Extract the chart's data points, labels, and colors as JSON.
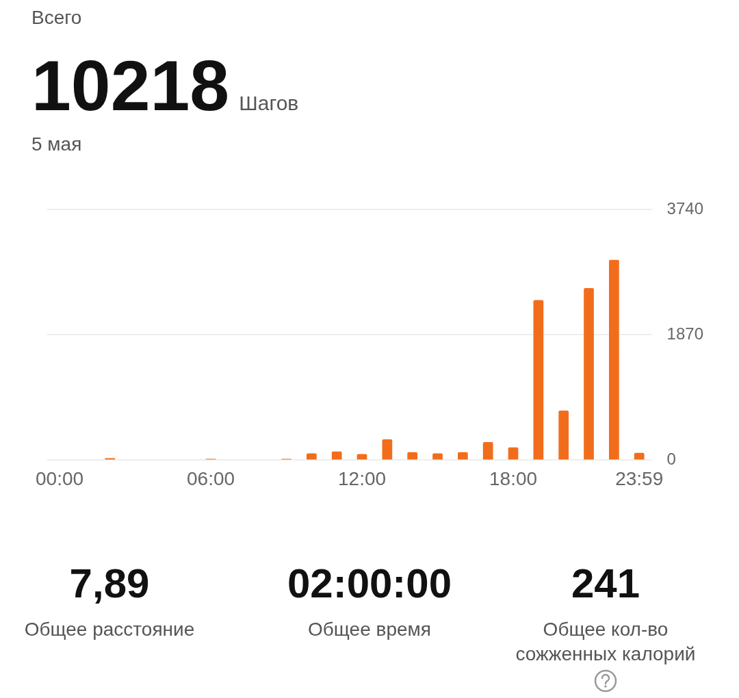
{
  "chart_data": {
    "type": "bar",
    "title": "Всего",
    "annotations": [
      "10218",
      "Шагов",
      "5 мая",
      "7,89",
      "Общее расстояние",
      "02:00:00",
      "Общее время",
      "241",
      "Общее кол-во сожженных калорий"
    ],
    "categories": [
      "00:00",
      null,
      null,
      null,
      null,
      null,
      "06:00",
      null,
      null,
      null,
      null,
      null,
      "12:00",
      null,
      null,
      null,
      null,
      null,
      "18:00",
      null,
      null,
      null,
      null,
      "23:59"
    ],
    "values": [
      0,
      0,
      30,
      0,
      0,
      0,
      20,
      0,
      0,
      20,
      100,
      130,
      90,
      310,
      120,
      100,
      120,
      270,
      190,
      2390,
      740,
      2570,
      2990,
      110
    ],
    "color": "#f26d1b",
    "ylim": [
      0,
      3740
    ],
    "yticks": [
      0,
      1870,
      3740
    ],
    "grid": "y"
  }
}
